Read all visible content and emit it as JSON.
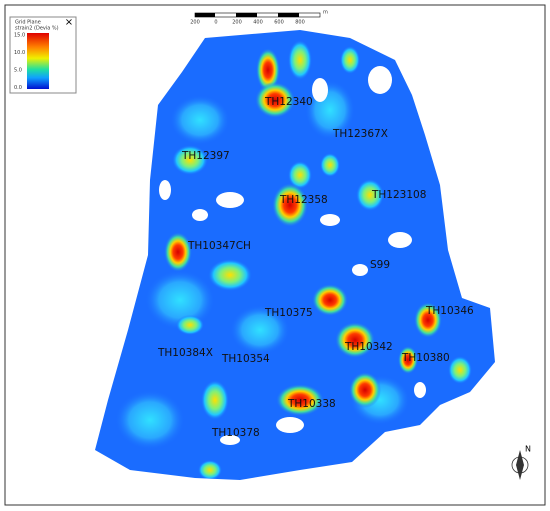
{
  "legend": {
    "title": "Grid Plane",
    "subtitle": "strain2 (Devia %)",
    "ticks": [
      "15.0",
      "10.0",
      "5.0",
      "0.0"
    ],
    "close": "×"
  },
  "scale_bar": {
    "labels": [
      "200",
      "0",
      "200",
      "400",
      "600",
      "800"
    ],
    "unit": "m"
  },
  "wells": [
    "TH12340",
    "TH12367X",
    "TH12397",
    "TH12358",
    "TH123108",
    "TH10347CH",
    "S99",
    "TH10375",
    "TH10346",
    "TH10384X",
    "TH10342",
    "TH10354",
    "TH10380",
    "TH10338",
    "TH10378"
  ],
  "north": "N"
}
